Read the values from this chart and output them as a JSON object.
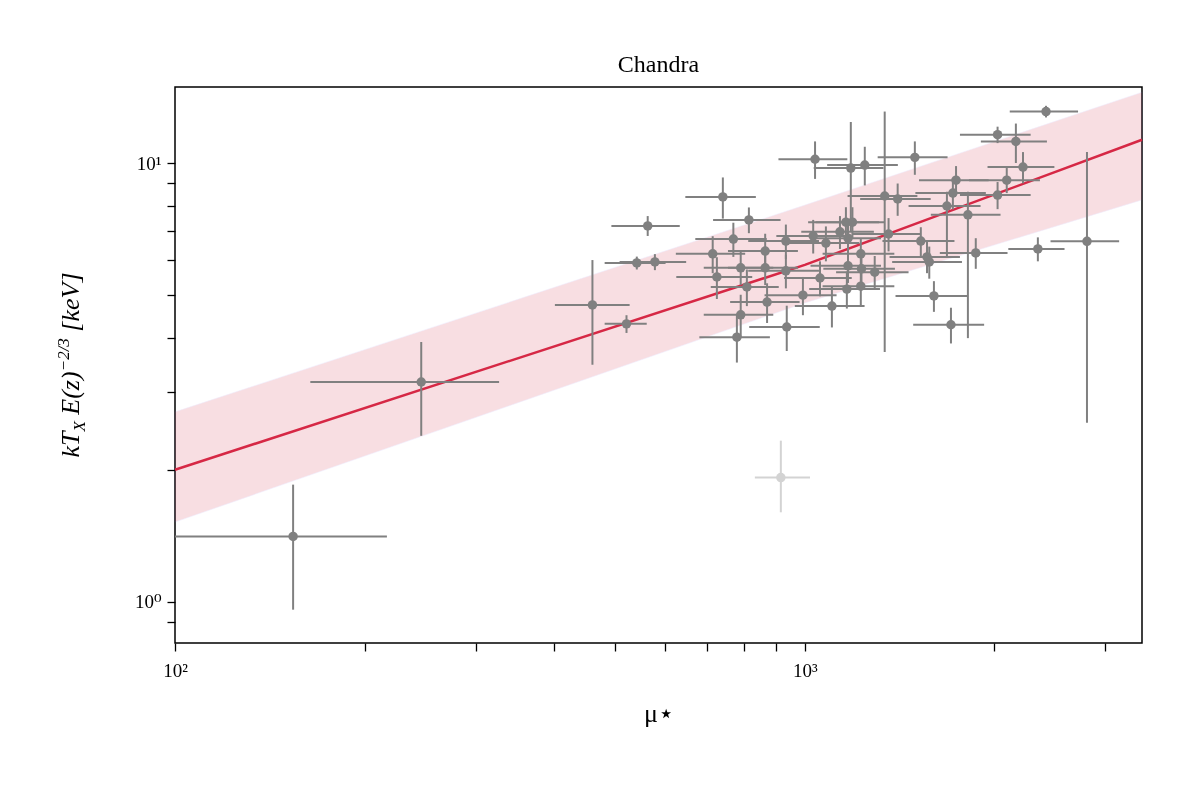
{
  "chart_data": {
    "type": "scatter",
    "title": "Chandra",
    "xlabel": "μ⋆",
    "ylabel": "kT$_{X}$ E(z)$^{−2/3}$ [keV]",
    "log": "xy",
    "grid": false,
    "marker": "circle",
    "xlim": [
      100,
      3430
    ],
    "ylim": [
      0.806,
      14.9
    ],
    "xticks": [
      {
        "value": 100,
        "label": "10²"
      },
      {
        "value": 200,
        "label": null
      },
      {
        "value": 300,
        "label": null
      },
      {
        "value": 400,
        "label": null
      },
      {
        "value": 500,
        "label": null
      },
      {
        "value": 600,
        "label": null
      },
      {
        "value": 700,
        "label": null
      },
      {
        "value": 800,
        "label": null
      },
      {
        "value": 900,
        "label": null
      },
      {
        "value": 1000,
        "label": "10³"
      },
      {
        "value": 2000,
        "label": null
      },
      {
        "value": 3000,
        "label": null
      }
    ],
    "yticks": [
      {
        "value": 0.9,
        "label": null
      },
      {
        "value": 1,
        "label": "10⁰"
      },
      {
        "value": 2,
        "label": null
      },
      {
        "value": 3,
        "label": null
      },
      {
        "value": 4,
        "label": null
      },
      {
        "value": 5,
        "label": null
      },
      {
        "value": 6,
        "label": null
      },
      {
        "value": 7,
        "label": null
      },
      {
        "value": 8,
        "label": null
      },
      {
        "value": 9,
        "label": null
      },
      {
        "value": 10,
        "label": "10¹"
      }
    ],
    "series": [
      {
        "type": "line",
        "marker": "none",
        "color": "#d62845",
        "x": [
          100,
          1000,
          3430
        ],
        "values": [
          2.0,
          5.86,
          11.3
        ],
        "lower": [
          1.52,
          4.8,
          8.24
        ],
        "upper": [
          2.71,
          8.02,
          14.5
        ]
      },
      {
        "color": "#808080",
        "x": [
          154,
          246,
          460,
          521,
          541,
          563,
          578,
          741,
          714,
          725,
          770,
          815,
          791,
          809,
          791,
          780,
          865,
          865,
          871,
          933,
          933,
          936,
          993,
          1031,
          1038,
          1057,
          1080,
          1104,
          1137,
          1162,
          1166,
          1171,
          1171,
          1183,
          1190,
          1227,
          1227,
          1230,
          1245,
          1291,
          1339,
          1358,
          1404,
          1495,
          1528,
          1563,
          1576,
          1603,
          1706,
          1681,
          1718,
          1738,
          1815,
          1868,
          2023,
          2023,
          2092,
          2163,
          2220,
          2344,
          2415,
          2805
        ],
        "values": [
          1.41,
          3.17,
          4.75,
          4.3,
          5.92,
          7.19,
          5.95,
          8.37,
          6.21,
          5.5,
          6.71,
          7.42,
          5.77,
          5.22,
          4.51,
          4.01,
          6.3,
          5.77,
          4.82,
          6.64,
          5.68,
          4.23,
          5.0,
          6.82,
          10.2,
          5.47,
          6.57,
          4.72,
          6.97,
          7.33,
          5.16,
          5.83,
          6.74,
          9.74,
          7.33,
          6.21,
          5.24,
          5.74,
          9.89,
          5.64,
          8.41,
          6.89,
          8.28,
          10.3,
          6.64,
          6.11,
          5.95,
          4.98,
          4.28,
          7.98,
          8.54,
          9.14,
          7.62,
          6.24,
          8.45,
          11.6,
          9.14,
          11.2,
          9.79,
          6.37,
          13.1,
          6.63
        ],
        "errors": [
          [
            0.96,
            1.85
          ],
          [
            2.39,
            3.91
          ],
          [
            3.47,
            6.01
          ],
          0.2,
          0.2,
          [
            6.82,
            7.57
          ],
          0.25,
          0.9,
          0.6,
          0.6,
          0.6,
          0.5,
          0.5,
          0.5,
          0.5,
          0.5,
          0.6,
          0.5,
          0.5,
          0.6,
          0.5,
          0.5,
          0.5,
          0.6,
          1.0,
          0.5,
          0.6,
          0.5,
          0.6,
          0.6,
          0.5,
          0.5,
          0.6,
          [
            7.0,
            12.4
          ],
          0.6,
          0.5,
          0.5,
          0.5,
          1.0,
          0.5,
          [
            3.71,
            13.1
          ],
          0.6,
          0.7,
          0.9,
          0.5,
          0.5,
          0.5,
          0.4,
          0.4,
          [
            6.1,
            8.6
          ],
          0.7,
          0.7,
          [
            3.99,
            8.6
          ],
          0.5,
          0.6,
          0.5,
          0.6,
          [
            10.0,
            12.3
          ],
          0.8,
          0.4,
          0.4,
          [
            2.56,
            10.6
          ]
        ],
        "xerrors": [
          [
            100,
            217
          ],
          [
            164,
            327
          ],
          [
            401,
            527
          ],
          40,
          60,
          70,
          70,
          95,
          90,
          100,
          100,
          100,
          100,
          100,
          100,
          100,
          110,
          110,
          110,
          120,
          120,
          120,
          130,
          130,
          130,
          130,
          140,
          140,
          150,
          150,
          150,
          150,
          150,
          150,
          150,
          160,
          160,
          160,
          160,
          170,
          170,
          170,
          180,
          190,
          200,
          200,
          200,
          210,
          220,
          220,
          220,
          220,
          230,
          230,
          260,
          260,
          270,
          260,
          270,
          240,
          300,
          350
        ]
      },
      {
        "color": "#d3d3d3",
        "x": [
          916
        ],
        "values": [
          1.92
        ],
        "errors": [
          [
            1.6,
            2.33
          ]
        ],
        "xerrors": [
          [
            833,
            1019
          ]
        ]
      }
    ]
  }
}
